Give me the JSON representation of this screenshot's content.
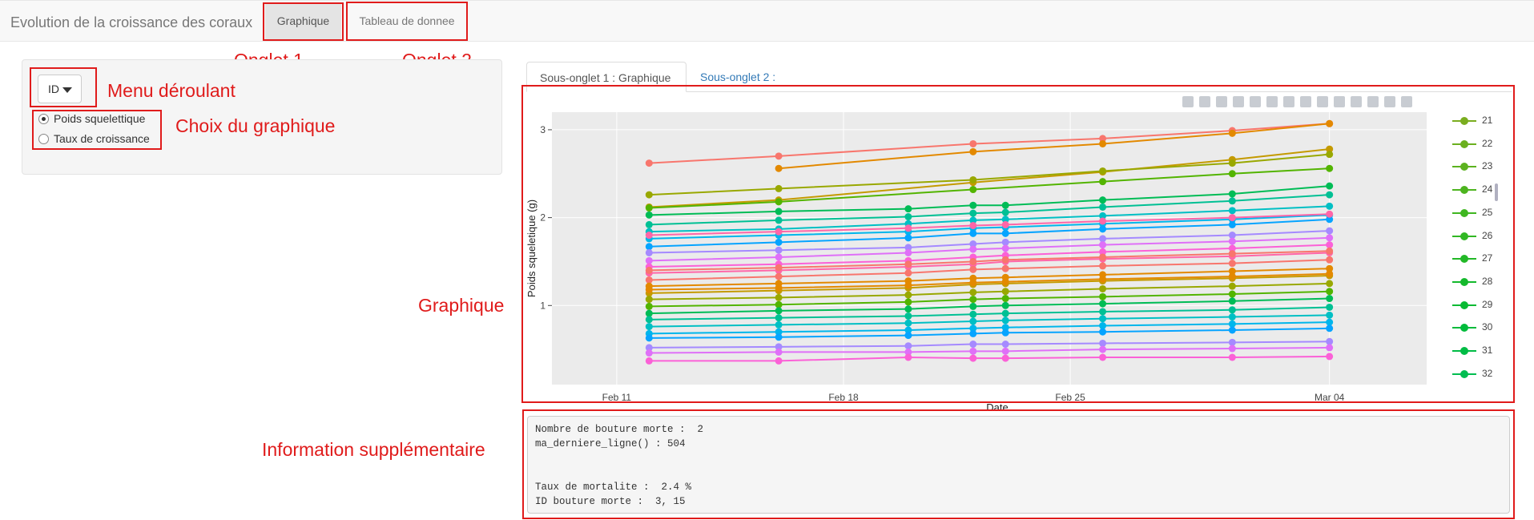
{
  "navbar": {
    "title": "Evolution de la croissance des coraux",
    "tabs": [
      "Graphique",
      "Tableau de donnee"
    ]
  },
  "annotations": {
    "onglet1": "Onglet 1",
    "onglet2": "Onglet 2",
    "menu": "Menu déroulant",
    "choix": "Choix du graphique",
    "graphique": "Graphique",
    "info": "Information supplémentaire"
  },
  "sidebar": {
    "dropdown_value": "ID",
    "radio_options": [
      "Poids squelettique",
      "Taux de croissance"
    ],
    "radio_selected": 0
  },
  "subtabs": [
    "Sous-onglet 1 : Graphique",
    "Sous-onglet 2 :"
  ],
  "modebar_icons": [
    "camera-icon",
    "zoom-icon",
    "pan-icon",
    "box-select-icon",
    "lasso-icon",
    "zoom-in-icon",
    "zoom-out-icon",
    "autoscale-icon",
    "reset-axes-icon",
    "spike-lines-icon",
    "hover-closest-icon",
    "hover-compare-icon",
    "toggle-hover-icon",
    "plotly-logo-icon"
  ],
  "chart_data": {
    "type": "line",
    "xlabel": "Date",
    "ylabel": "Poids squeletique (g)",
    "x_ticks": [
      "Feb 11",
      "Feb 18",
      "Feb 25",
      "Mar 04"
    ],
    "y_ticks": [
      "1",
      "2",
      "3"
    ],
    "dates": [
      "2020-02-12",
      "2020-02-16",
      "2020-02-20",
      "2020-02-22",
      "2020-02-23",
      "2020-02-26",
      "2020-03-01",
      "2020-03-04"
    ],
    "ylim": [
      0.1,
      3.2
    ],
    "legend": [
      "21",
      "22",
      "23",
      "24",
      "25",
      "26",
      "27",
      "28",
      "29",
      "30",
      "31",
      "32"
    ],
    "legend_colors": [
      "#7aad1f",
      "#6bb01f",
      "#5cb21f",
      "#4db41f",
      "#3fb620",
      "#31b723",
      "#22b827",
      "#14b92c",
      "#08ba33",
      "#00bb3b",
      "#00bc45",
      "#00bd50"
    ],
    "series_colors": [
      "#f8766d",
      "#e38900",
      "#c49a00",
      "#99a800",
      "#53b400",
      "#00bc56",
      "#00c094",
      "#00bfc4",
      "#00b6eb",
      "#06a4ff",
      "#a58aff",
      "#df70f8",
      "#fb61d7",
      "#ff66a8"
    ],
    "series": [
      {
        "values": [
          2.62,
          2.7,
          null,
          2.84,
          null,
          2.9,
          2.99,
          3.07
        ]
      },
      {
        "values": [
          null,
          2.56,
          null,
          2.75,
          null,
          2.84,
          2.96,
          3.07
        ]
      },
      {
        "values": [
          2.12,
          2.2,
          null,
          2.4,
          null,
          2.52,
          2.66,
          2.78
        ]
      },
      {
        "values": [
          2.26,
          2.33,
          null,
          2.43,
          null,
          2.53,
          2.62,
          2.72
        ]
      },
      {
        "values": [
          2.11,
          2.18,
          null,
          2.32,
          null,
          2.41,
          2.5,
          2.56
        ]
      },
      {
        "values": [
          2.03,
          2.07,
          2.1,
          2.14,
          2.14,
          2.2,
          2.27,
          2.36
        ]
      },
      {
        "values": [
          1.92,
          1.97,
          2.01,
          2.05,
          2.06,
          2.12,
          2.19,
          2.26
        ]
      },
      {
        "values": [
          1.84,
          1.87,
          1.93,
          1.97,
          1.98,
          2.02,
          2.08,
          2.13
        ]
      },
      {
        "values": [
          1.76,
          1.8,
          1.84,
          1.88,
          1.89,
          1.93,
          1.98,
          2.03
        ]
      },
      {
        "values": [
          1.67,
          1.72,
          1.77,
          1.82,
          1.82,
          1.87,
          1.92,
          1.98
        ]
      },
      {
        "values": [
          1.6,
          1.63,
          1.66,
          1.7,
          1.72,
          1.76,
          1.8,
          1.85
        ]
      },
      {
        "values": [
          1.51,
          1.55,
          1.6,
          1.64,
          1.65,
          1.69,
          1.73,
          1.77
        ]
      },
      {
        "values": [
          1.44,
          1.47,
          1.51,
          1.55,
          1.57,
          1.61,
          1.65,
          1.69
        ]
      },
      {
        "values": [
          1.37,
          1.4,
          1.44,
          1.47,
          1.5,
          1.53,
          1.56,
          1.6
        ]
      },
      {
        "values": [
          1.29,
          1.33,
          1.37,
          1.41,
          1.42,
          1.45,
          1.48,
          1.52
        ]
      },
      {
        "values": [
          1.22,
          1.25,
          1.28,
          1.31,
          1.32,
          1.35,
          1.39,
          1.42
        ]
      },
      {
        "values": [
          1.14,
          1.17,
          1.2,
          1.24,
          1.25,
          1.28,
          1.31,
          1.34
        ]
      },
      {
        "values": [
          1.07,
          1.09,
          1.12,
          1.15,
          1.16,
          1.19,
          1.22,
          1.25
        ]
      },
      {
        "values": [
          0.99,
          1.01,
          1.04,
          1.07,
          1.08,
          1.1,
          1.13,
          1.16
        ]
      },
      {
        "values": [
          0.91,
          0.94,
          0.96,
          0.99,
          1.0,
          1.02,
          1.05,
          1.08
        ]
      },
      {
        "values": [
          0.84,
          0.86,
          0.88,
          0.9,
          0.91,
          0.93,
          0.95,
          0.98
        ]
      },
      {
        "values": [
          0.76,
          0.78,
          0.8,
          0.82,
          0.83,
          0.85,
          0.87,
          0.89
        ]
      },
      {
        "values": [
          0.68,
          0.7,
          0.72,
          0.74,
          0.75,
          0.77,
          0.79,
          0.81
        ]
      },
      {
        "values": [
          0.63,
          0.64,
          0.66,
          0.68,
          0.69,
          0.7,
          0.72,
          0.74
        ]
      },
      {
        "values": [
          0.52,
          0.53,
          0.54,
          0.56,
          0.56,
          0.57,
          0.58,
          0.59
        ]
      },
      {
        "values": [
          0.46,
          0.47,
          0.47,
          0.48,
          0.48,
          0.5,
          0.51,
          0.52
        ]
      },
      {
        "values": [
          0.37,
          0.37,
          0.41,
          0.4,
          0.4,
          0.41,
          0.41,
          0.42
        ]
      },
      {
        "values": [
          1.8,
          1.84,
          1.88,
          1.91,
          1.92,
          1.96,
          2.0,
          2.04
        ]
      },
      {
        "values": [
          1.4,
          1.43,
          1.47,
          1.5,
          1.52,
          1.55,
          1.59,
          1.62
        ]
      },
      {
        "values": [
          1.18,
          1.2,
          1.23,
          1.26,
          1.27,
          1.3,
          1.33,
          1.36
        ]
      }
    ]
  },
  "info_output": {
    "line1": "Nombre de bouture morte :  2",
    "line2": "ma_derniere_ligne() : 504",
    "line3": "",
    "line4": "",
    "line5": "Taux de mortalite :  2.4 %",
    "line6": "ID bouture morte :  3, 15"
  }
}
